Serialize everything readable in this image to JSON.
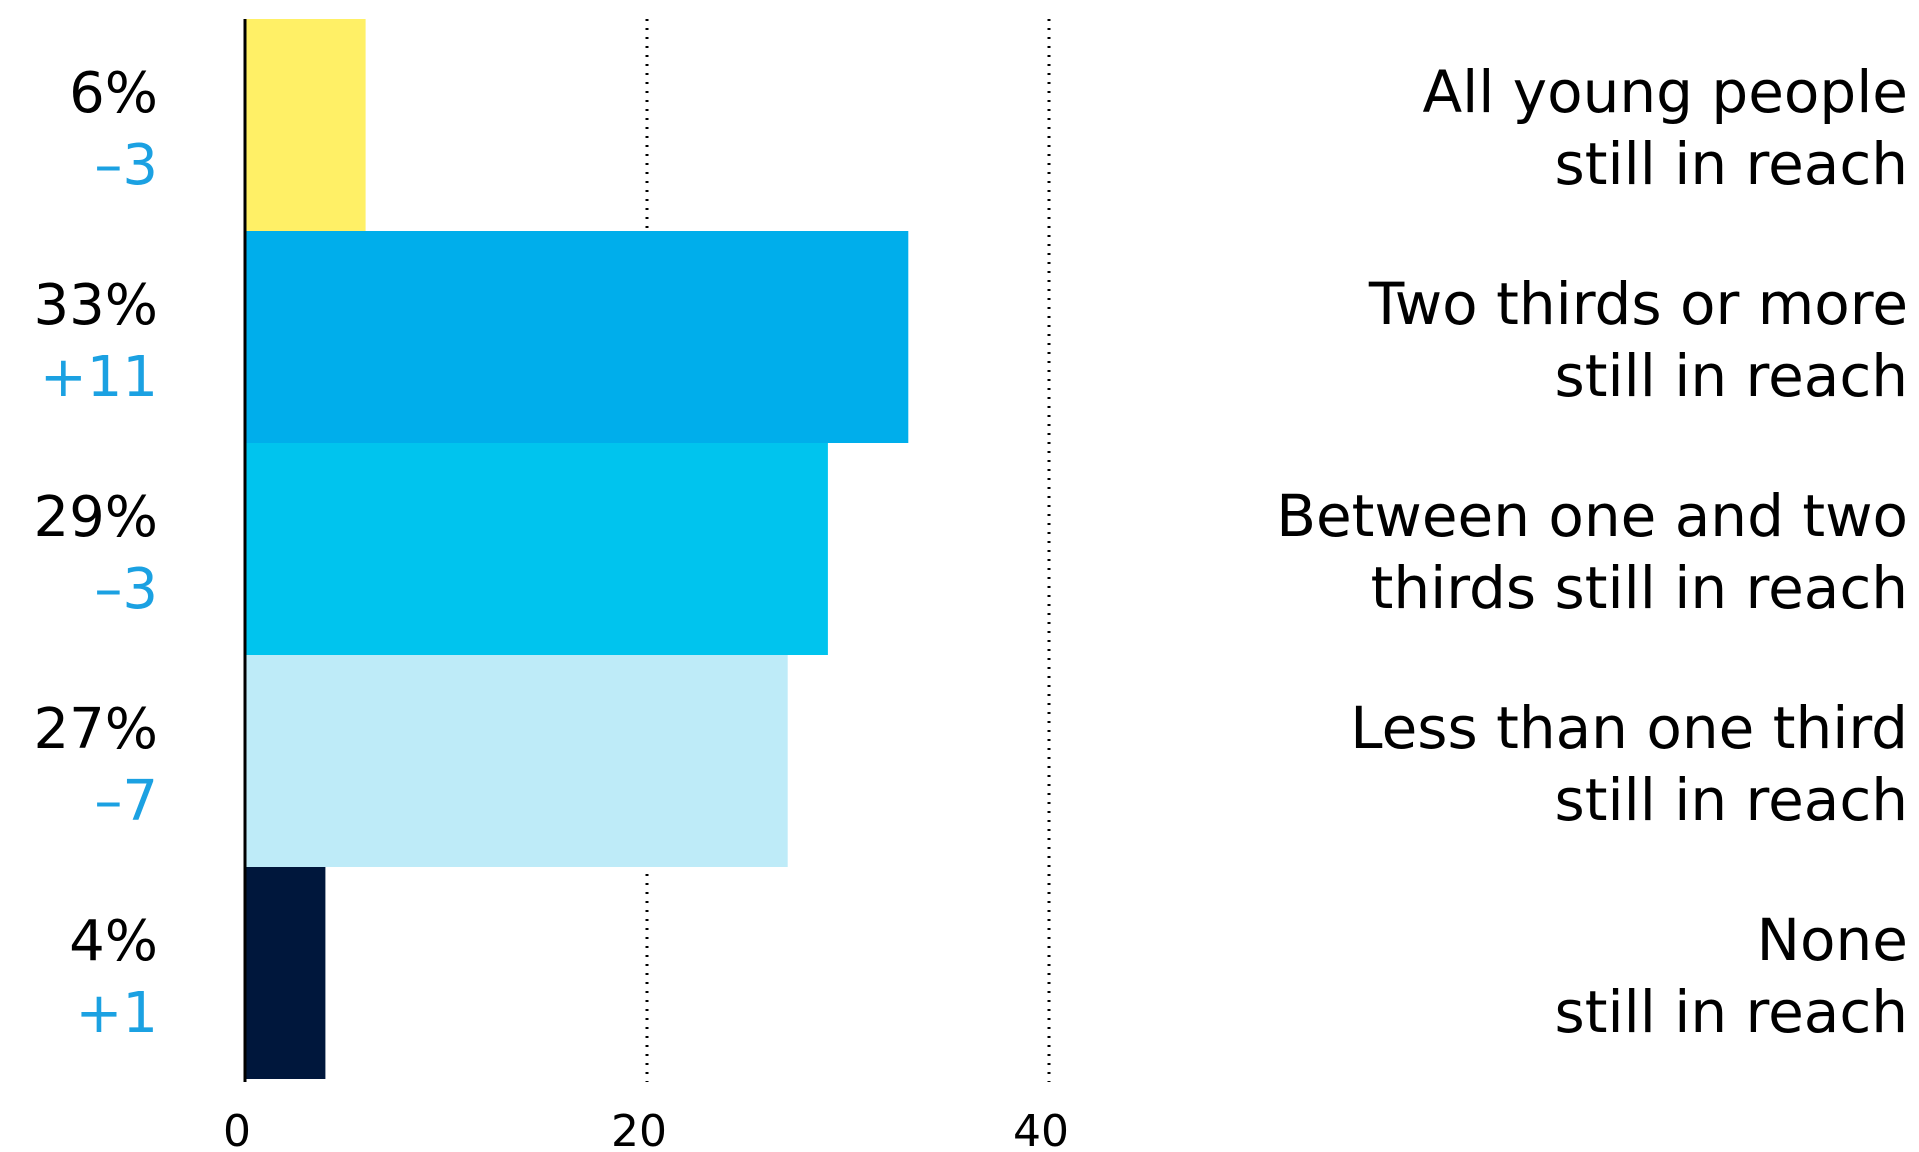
{
  "chart_data": {
    "type": "bar",
    "orientation": "horizontal",
    "xlim": [
      0,
      40
    ],
    "xticks": [
      "0",
      "20",
      "40"
    ],
    "grid": "dotted vertical lines at 20 and 40",
    "categories": [
      [
        "All young people",
        "still in reach"
      ],
      [
        "Two thirds or more",
        "still in reach"
      ],
      [
        "Between one and two",
        "thirds still in reach"
      ],
      [
        "Less than one third",
        "still in reach"
      ],
      [
        "None",
        "still in reach"
      ]
    ],
    "values": [
      6,
      33,
      29,
      27,
      4
    ],
    "value_labels": [
      "6%",
      "33%",
      "29%",
      "27%",
      "4%"
    ],
    "change_labels": [
      "–3",
      "+11",
      "–3",
      "–7",
      "+1"
    ],
    "colors": [
      "#FFF066",
      "#00AEEB",
      "#00C4EE",
      "#BEEBF8",
      "#00173C"
    ],
    "change_color": "#1BA1E2",
    "axis_color": "#000000"
  }
}
